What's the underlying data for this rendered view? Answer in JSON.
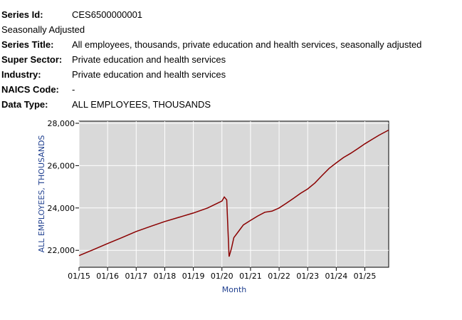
{
  "series_info": {
    "series_id_label": "Series Id:",
    "series_id": "CES6500000001",
    "seasonal": "Seasonally Adjusted",
    "series_title_label": "Series Title:",
    "series_title": "All employees, thousands, private education and health services, seasonally adjusted",
    "super_sector_label": "Super Sector:",
    "super_sector": "Private education and health services",
    "industry_label": "Industry:",
    "industry": "Private education and health services",
    "naics_label": "NAICS Code:",
    "naics": "-",
    "data_type_label": "Data Type:",
    "data_type": "ALL EMPLOYEES, THOUSANDS"
  },
  "chart_data": {
    "type": "line",
    "xlabel": "Month",
    "ylabel": "ALL EMPLOYEES, THOUSANDS",
    "ylim": [
      21200,
      28100
    ],
    "xlim": [
      "2015-01",
      "2025-11"
    ],
    "yticks": [
      22000,
      24000,
      26000,
      28000
    ],
    "ytick_labels": [
      "22,000",
      "24,000",
      "26,000",
      "28,000"
    ],
    "xticks": [
      "2015-01",
      "2016-01",
      "2017-01",
      "2018-01",
      "2019-01",
      "2020-01",
      "2021-01",
      "2022-01",
      "2023-01",
      "2024-01",
      "2025-01"
    ],
    "xtick_labels": [
      "01/15",
      "01/16",
      "01/17",
      "01/18",
      "01/19",
      "01/20",
      "01/21",
      "01/22",
      "01/23",
      "01/24",
      "01/25"
    ],
    "grid": true,
    "background": "#d9d9d9",
    "line_color": "#8b0000",
    "axis_title_color": "#1f3f8f",
    "series": [
      {
        "x": [
          "2015-01",
          "2015-07",
          "2016-01",
          "2016-07",
          "2017-01",
          "2017-07",
          "2018-01",
          "2018-07",
          "2019-01",
          "2019-07",
          "2020-01",
          "2020-02",
          "2020-03",
          "2020-04",
          "2020-05",
          "2020-06",
          "2020-08",
          "2020-10",
          "2021-01",
          "2021-04",
          "2021-07",
          "2021-10",
          "2022-01",
          "2022-04",
          "2022-07",
          "2022-10",
          "2023-01",
          "2023-04",
          "2023-07",
          "2023-10",
          "2024-01",
          "2024-04",
          "2024-07",
          "2024-10",
          "2025-01",
          "2025-04",
          "2025-07",
          "2025-11"
        ],
        "values": [
          21750,
          22030,
          22320,
          22600,
          22890,
          23130,
          23360,
          23560,
          23760,
          24000,
          24330,
          24520,
          24380,
          21700,
          22100,
          22600,
          22900,
          23200,
          23410,
          23620,
          23800,
          23850,
          24000,
          24220,
          24450,
          24690,
          24900,
          25180,
          25530,
          25870,
          26130,
          26380,
          26580,
          26800,
          27030,
          27240,
          27440,
          27680
        ]
      }
    ]
  }
}
